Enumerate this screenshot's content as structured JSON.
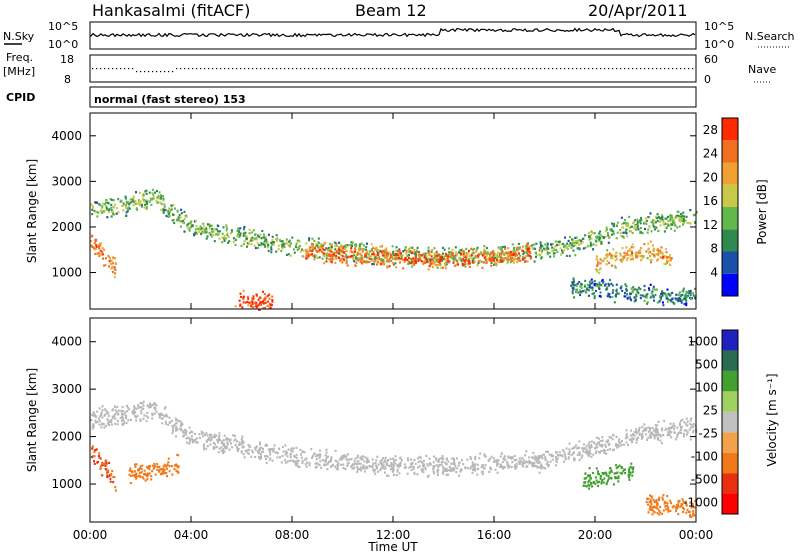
{
  "header": {
    "station": "Hankasalmi (fitACF)",
    "beam": "Beam 12",
    "date": "20/Apr/2011"
  },
  "top_panels": {
    "nsky_label": "N.Sky",
    "nsky_ticks": [
      "10^5",
      "10^0"
    ],
    "nsearch_label": "N.Search",
    "nsearch_ticks": [
      "10^5",
      "10^0"
    ],
    "freq_label_1": "Freq.",
    "freq_label_2": "[MHz]",
    "freq_ticks": [
      "18",
      "8"
    ],
    "nave_label": "Nave",
    "nave_ticks": [
      "60",
      "0"
    ],
    "cpid_label": "CPID",
    "cpid_text": "normal (fast stereo) 153"
  },
  "colors": {
    "power_scale": [
      "#0000ff",
      "#1a50a8",
      "#2f8a4f",
      "#63b84b",
      "#c8c84a",
      "#f0a030",
      "#f07020",
      "#ff2a00"
    ],
    "velocity_scale": [
      "#ff0000",
      "#e83010",
      "#f07a1a",
      "#f2a24a",
      "#c0c0c0",
      "#a0d060",
      "#40a030",
      "#2a6a50",
      "#2020c0"
    ],
    "ground_scatter": "#b8b8b8"
  },
  "chart_data": [
    {
      "type": "heatmap",
      "name": "Power",
      "ylabel": "Slant Range [km]",
      "xlabel": "Time UT",
      "x_ticks": [
        "00:00",
        "04:00",
        "08:00",
        "12:00",
        "16:00",
        "20:00",
        "00:00"
      ],
      "y_ticks": [
        1000,
        2000,
        3000,
        4000
      ],
      "ylim": [
        200,
        4500
      ],
      "colorbar": {
        "label": "Power [dB]",
        "ticks": [
          4,
          8,
          12,
          16,
          20,
          24,
          28
        ],
        "range": [
          0,
          30
        ]
      },
      "features": [
        {
          "name": "main-band",
          "t": [
            0.0,
            1.5,
            2.5,
            4.0,
            6.0,
            8.0,
            10.0,
            12.0,
            14.0,
            16.0,
            18.0,
            19.0,
            20.0,
            21.0,
            22.0,
            23.0,
            24.0
          ],
          "range": [
            2400,
            2500,
            2700,
            2000,
            1800,
            1600,
            1500,
            1400,
            1350,
            1400,
            1500,
            1600,
            1800,
            2000,
            2100,
            2150,
            2200
          ],
          "power": 14
        },
        {
          "name": "core-echo",
          "t": [
            8.5,
            10.0,
            12.0,
            14.0,
            16.0,
            17.5
          ],
          "range": [
            1500,
            1400,
            1350,
            1300,
            1350,
            1450
          ],
          "power": 26
        },
        {
          "name": "low-echo",
          "t": [
            5.7,
            6.2,
            6.7,
            7.2
          ],
          "range": [
            450,
            400,
            380,
            360
          ],
          "power": 28
        },
        {
          "name": "left-echo",
          "t": [
            0.0,
            0.5,
            1.0
          ],
          "range": [
            1700,
            1400,
            1100
          ],
          "power": 24
        },
        {
          "name": "late-echo",
          "t": [
            20.0,
            21.0,
            22.0,
            23.0
          ],
          "range": [
            1200,
            1400,
            1500,
            1300
          ],
          "power": 22
        },
        {
          "name": "near-range",
          "t": [
            19.0,
            21.0,
            23.0,
            24.0
          ],
          "range": [
            700,
            600,
            500,
            500
          ],
          "power": 10
        }
      ]
    },
    {
      "type": "heatmap",
      "name": "Velocity",
      "ylabel": "Slant Range [km]",
      "xlabel": "Time UT",
      "x_ticks": [
        "00:00",
        "04:00",
        "08:00",
        "12:00",
        "16:00",
        "20:00",
        "00:00"
      ],
      "y_ticks": [
        1000,
        2000,
        3000,
        4000
      ],
      "ylim": [
        200,
        4500
      ],
      "colorbar": {
        "label": "Velocity [m s⁻¹]",
        "ticks": [
          "1000",
          "500",
          "100",
          "25",
          "-25",
          "-100",
          "-500",
          "-1000"
        ],
        "range": [
          -1000,
          1000
        ]
      },
      "features": [
        {
          "name": "ground-scatter-band",
          "t": [
            0.0,
            1.5,
            2.5,
            4.0,
            6.0,
            8.0,
            10.0,
            12.0,
            14.0,
            16.0,
            18.0,
            20.0,
            22.0,
            24.0
          ],
          "range": [
            2400,
            2500,
            2600,
            2000,
            1800,
            1600,
            1500,
            1400,
            1400,
            1450,
            1500,
            1800,
            2100,
            2200
          ],
          "velocity": 0
        },
        {
          "name": "left-negative",
          "t": [
            0.0,
            0.5,
            1.0
          ],
          "range": [
            1700,
            1400,
            1100
          ],
          "velocity": -500
        },
        {
          "name": "early-negative",
          "t": [
            1.5,
            2.5,
            3.5
          ],
          "range": [
            1200,
            1300,
            1400
          ],
          "velocity": -200
        },
        {
          "name": "late-positive",
          "t": [
            19.5,
            20.5,
            21.5
          ],
          "range": [
            1100,
            1200,
            1300
          ],
          "velocity": 150
        },
        {
          "name": "late-negative",
          "t": [
            22.0,
            23.0,
            24.0
          ],
          "range": [
            600,
            550,
            500
          ],
          "velocity": -300
        }
      ]
    }
  ],
  "x_axis_label": "Time UT"
}
